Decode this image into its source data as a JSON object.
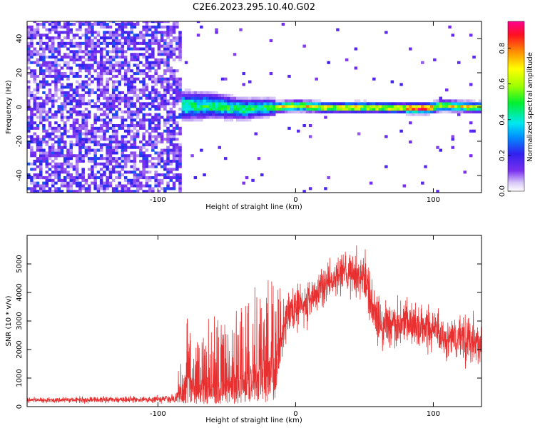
{
  "title": "C2E6.2023.295.10.40.G02",
  "chart_data": [
    {
      "type": "heatmap",
      "xlabel": "Height of straight line (km)",
      "ylabel": "Frequency (Hz)",
      "xlim": [
        -195,
        135
      ],
      "ylim": [
        -50,
        50
      ],
      "x_ticks": [
        -100,
        0,
        100
      ],
      "y_ticks": [
        -40,
        -20,
        0,
        20,
        40
      ],
      "colorbar": {
        "label": "Normalized spectral amplitude",
        "range": [
          0.0,
          0.95
        ],
        "ticks": [
          0.0,
          0.2,
          0.4,
          0.6,
          0.8
        ]
      },
      "regions": [
        {
          "x": [
            -195,
            -85
          ],
          "description": "broadband noise across all frequencies, amplitude ~0.2-0.3"
        },
        {
          "x": [
            -85,
            -15
          ],
          "center_freq": 0,
          "half_width": 6,
          "peak": 0.55
        },
        {
          "x": [
            -15,
            135
          ],
          "center_freq": 0,
          "half_width": 2,
          "peak": 0.95
        }
      ],
      "band_center_hz": [
        [
          -85,
          0
        ],
        [
          -60,
          0
        ],
        [
          -40,
          -2
        ],
        [
          -20,
          -1
        ],
        [
          0,
          0
        ],
        [
          20,
          -1
        ],
        [
          40,
          -1
        ],
        [
          60,
          -1
        ],
        [
          80,
          -1.5
        ],
        [
          95,
          -1.5
        ],
        [
          105,
          0
        ],
        [
          135,
          -1
        ]
      ]
    },
    {
      "type": "line",
      "color": "#e83030",
      "xlabel": "Height of straight line (km)",
      "ylabel": "SNR (10 * v/v)",
      "xlim": [
        -195,
        135
      ],
      "ylim": [
        0,
        6000
      ],
      "x_ticks": [
        -100,
        0,
        100
      ],
      "y_ticks": [
        0,
        1000,
        2000,
        3000,
        4000,
        5000
      ],
      "envelope": {
        "x": [
          -195,
          -150,
          -100,
          -88,
          -80,
          -70,
          -60,
          -50,
          -40,
          -30,
          -20,
          -15,
          -10,
          -5,
          0,
          10,
          20,
          30,
          40,
          50,
          60,
          70,
          80,
          90,
          100,
          110,
          120,
          135
        ],
        "mean": [
          220,
          240,
          250,
          260,
          900,
          700,
          900,
          800,
          1000,
          1200,
          1300,
          1500,
          2600,
          3300,
          3500,
          3700,
          4200,
          4500,
          4800,
          4500,
          3000,
          2900,
          3000,
          2800,
          2600,
          2300,
          2400,
          2300
        ],
        "spread": [
          80,
          90,
          100,
          120,
          900,
          700,
          900,
          800,
          1000,
          1100,
          1300,
          1400,
          700,
          600,
          600,
          600,
          600,
          600,
          700,
          700,
          800,
          700,
          700,
          700,
          700,
          700,
          800,
          700
        ]
      }
    }
  ]
}
